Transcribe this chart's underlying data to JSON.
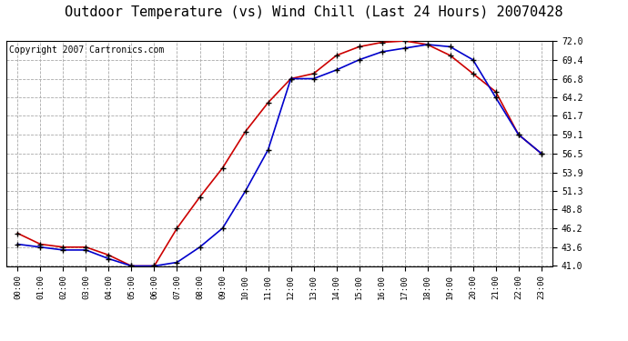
{
  "title": "Outdoor Temperature (vs) Wind Chill (Last 24 Hours) 20070428",
  "copyright": "Copyright 2007 Cartronics.com",
  "x_labels": [
    "00:00",
    "01:00",
    "02:00",
    "03:00",
    "04:00",
    "05:00",
    "06:00",
    "07:00",
    "08:00",
    "09:00",
    "10:00",
    "11:00",
    "12:00",
    "13:00",
    "14:00",
    "15:00",
    "16:00",
    "17:00",
    "18:00",
    "19:00",
    "20:00",
    "21:00",
    "22:00",
    "23:00"
  ],
  "temp": [
    45.5,
    44.0,
    43.6,
    43.6,
    42.5,
    41.0,
    41.0,
    46.2,
    50.5,
    54.5,
    59.5,
    63.5,
    66.8,
    67.5,
    70.0,
    71.2,
    71.8,
    72.0,
    71.5,
    70.0,
    67.5,
    65.0,
    59.1,
    56.5
  ],
  "windchill": [
    44.0,
    43.6,
    43.2,
    43.2,
    42.0,
    41.0,
    41.0,
    41.5,
    43.6,
    46.2,
    51.3,
    57.0,
    66.8,
    66.8,
    68.0,
    69.4,
    70.5,
    71.0,
    71.5,
    71.2,
    69.4,
    64.2,
    59.1,
    56.5
  ],
  "ylim": [
    41.0,
    72.0
  ],
  "yticks": [
    41.0,
    43.6,
    46.2,
    48.8,
    51.3,
    53.9,
    56.5,
    59.1,
    61.7,
    64.2,
    66.8,
    69.4,
    72.0
  ],
  "temp_color": "#cc0000",
  "windchill_color": "#0000cc",
  "bg_color": "#ffffff",
  "grid_color": "#aaaaaa",
  "title_fontsize": 11,
  "copyright_fontsize": 7
}
